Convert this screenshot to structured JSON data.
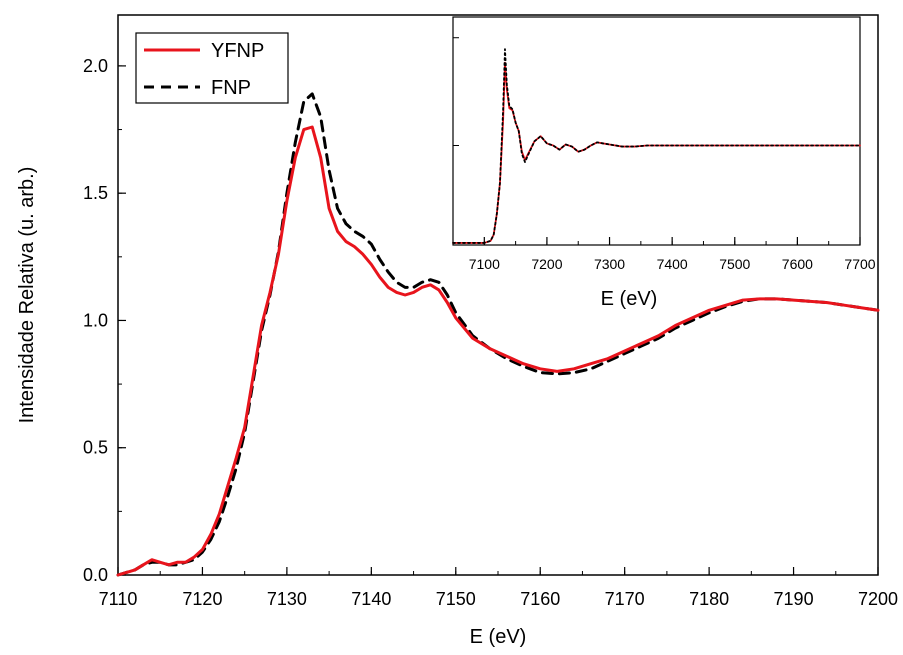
{
  "chart_data": [
    {
      "type": "line",
      "title": "",
      "xlabel": "E (eV)",
      "ylabel": "Intensidade Relativa (u. arb.)",
      "xlim": [
        7110,
        7200
      ],
      "ylim": [
        0,
        2.2
      ],
      "xticks": [
        7110,
        7120,
        7130,
        7140,
        7150,
        7160,
        7170,
        7180,
        7190,
        7200
      ],
      "xtick_labels": [
        "7110",
        "7120",
        "7130",
        "7140",
        "7150",
        "7160",
        "7170",
        "7180",
        "7190",
        "7200"
      ],
      "yticks": [
        0,
        0.5,
        1.0,
        1.5,
        2.0
      ],
      "ytick_labels": [
        "0.0",
        "0.5",
        "1.0",
        "1.5",
        "2.0"
      ],
      "legend_position": "top-left",
      "grid": false,
      "series": [
        {
          "name": "YFNP",
          "color": "#e8141c",
          "style": "solid",
          "x": [
            7110,
            7111,
            7112,
            7113,
            7114,
            7115,
            7116,
            7117,
            7118,
            7119,
            7120,
            7121,
            7122,
            7123,
            7124,
            7125,
            7126,
            7127,
            7128,
            7129,
            7130,
            7131,
            7132,
            7133,
            7134,
            7135,
            7136,
            7137,
            7138,
            7139,
            7140,
            7141,
            7142,
            7143,
            7144,
            7145,
            7146,
            7147,
            7148,
            7149,
            7150,
            7152,
            7154,
            7156,
            7158,
            7160,
            7162,
            7164,
            7166,
            7168,
            7170,
            7172,
            7174,
            7176,
            7178,
            7180,
            7182,
            7184,
            7186,
            7188,
            7190,
            7192,
            7194,
            7196,
            7198,
            7200
          ],
          "y": [
            0.0,
            0.01,
            0.02,
            0.04,
            0.06,
            0.05,
            0.04,
            0.05,
            0.05,
            0.07,
            0.1,
            0.16,
            0.24,
            0.35,
            0.46,
            0.58,
            0.78,
            0.98,
            1.11,
            1.26,
            1.47,
            1.64,
            1.75,
            1.76,
            1.64,
            1.44,
            1.35,
            1.31,
            1.29,
            1.26,
            1.22,
            1.17,
            1.13,
            1.11,
            1.1,
            1.11,
            1.13,
            1.14,
            1.12,
            1.07,
            1.01,
            0.93,
            0.89,
            0.86,
            0.83,
            0.81,
            0.8,
            0.81,
            0.83,
            0.85,
            0.88,
            0.91,
            0.94,
            0.98,
            1.01,
            1.04,
            1.06,
            1.08,
            1.085,
            1.085,
            1.08,
            1.075,
            1.07,
            1.06,
            1.05,
            1.04
          ]
        },
        {
          "name": "FNP",
          "color": "#000000",
          "style": "dashed",
          "x": [
            7110,
            7111,
            7112,
            7113,
            7114,
            7115,
            7116,
            7117,
            7118,
            7119,
            7120,
            7121,
            7122,
            7123,
            7124,
            7125,
            7126,
            7127,
            7128,
            7129,
            7130,
            7131,
            7132,
            7133,
            7134,
            7135,
            7136,
            7137,
            7138,
            7139,
            7140,
            7141,
            7142,
            7143,
            7144,
            7145,
            7146,
            7147,
            7148,
            7149,
            7150,
            7152,
            7154,
            7156,
            7158,
            7160,
            7162,
            7164,
            7166,
            7168,
            7170,
            7172,
            7174,
            7176,
            7178,
            7180,
            7182,
            7184,
            7186,
            7188,
            7190,
            7192,
            7194,
            7196,
            7198,
            7200
          ],
          "y": [
            0.0,
            0.01,
            0.02,
            0.04,
            0.05,
            0.05,
            0.04,
            0.04,
            0.05,
            0.06,
            0.09,
            0.14,
            0.21,
            0.31,
            0.42,
            0.56,
            0.76,
            0.96,
            1.1,
            1.27,
            1.5,
            1.7,
            1.86,
            1.89,
            1.8,
            1.59,
            1.44,
            1.38,
            1.35,
            1.33,
            1.3,
            1.24,
            1.19,
            1.15,
            1.13,
            1.13,
            1.15,
            1.16,
            1.15,
            1.1,
            1.03,
            0.94,
            0.89,
            0.85,
            0.82,
            0.795,
            0.79,
            0.795,
            0.81,
            0.84,
            0.87,
            0.9,
            0.93,
            0.97,
            1.0,
            1.03,
            1.055,
            1.075,
            1.085,
            1.085,
            1.08,
            1.075,
            1.07,
            1.06,
            1.05,
            1.04
          ]
        }
      ]
    },
    {
      "type": "line",
      "title": "",
      "xlabel": "E (eV)",
      "ylabel": "",
      "xlim": [
        7050,
        7700
      ],
      "ylim": [
        0,
        2.2
      ],
      "xticks": [
        7100,
        7200,
        7300,
        7400,
        7500,
        7600,
        7700
      ],
      "xtick_labels": [
        "7100",
        "7200",
        "7300",
        "7400",
        "7500",
        "7600",
        "7700"
      ],
      "grid": false,
      "series": [
        {
          "color": "#e8141c",
          "style": "solid",
          "x": [
            7050,
            7100,
            7110,
            7115,
            7120,
            7125,
            7130,
            7133,
            7136,
            7140,
            7145,
            7150,
            7155,
            7160,
            7165,
            7170,
            7180,
            7190,
            7200,
            7210,
            7220,
            7230,
            7240,
            7250,
            7260,
            7270,
            7280,
            7290,
            7300,
            7320,
            7340,
            7360,
            7400,
            7450,
            7500,
            7600,
            7700
          ],
          "y": [
            0.02,
            0.02,
            0.04,
            0.1,
            0.3,
            0.6,
            1.2,
            1.76,
            1.5,
            1.32,
            1.3,
            1.18,
            1.1,
            0.9,
            0.82,
            0.88,
            1.0,
            1.05,
            0.98,
            0.96,
            0.92,
            0.97,
            0.95,
            0.9,
            0.92,
            0.96,
            0.99,
            0.98,
            0.97,
            0.95,
            0.95,
            0.96,
            0.96,
            0.96,
            0.96,
            0.96,
            0.96
          ]
        },
        {
          "color": "#000000",
          "style": "dotted",
          "x": [
            7050,
            7100,
            7110,
            7115,
            7120,
            7125,
            7130,
            7133,
            7136,
            7140,
            7145,
            7150,
            7155,
            7160,
            7165,
            7170,
            7180,
            7190,
            7200,
            7210,
            7220,
            7230,
            7240,
            7250,
            7260,
            7270,
            7280,
            7290,
            7300,
            7320,
            7340,
            7360,
            7400,
            7450,
            7500,
            7600,
            7700
          ],
          "y": [
            0.02,
            0.02,
            0.04,
            0.1,
            0.3,
            0.6,
            1.3,
            1.89,
            1.55,
            1.34,
            1.31,
            1.18,
            1.1,
            0.88,
            0.8,
            0.87,
            1.0,
            1.05,
            0.98,
            0.96,
            0.92,
            0.97,
            0.95,
            0.9,
            0.92,
            0.96,
            0.99,
            0.98,
            0.97,
            0.95,
            0.95,
            0.96,
            0.96,
            0.96,
            0.96,
            0.96,
            0.96
          ]
        }
      ]
    }
  ]
}
